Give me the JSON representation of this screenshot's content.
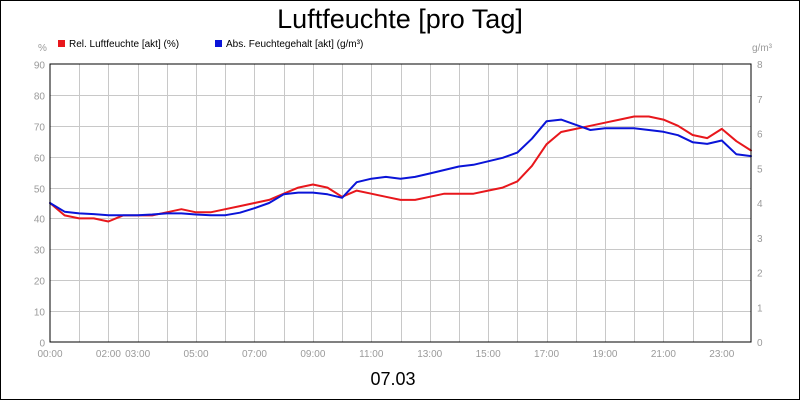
{
  "window": {
    "title": "Luftfeuchte [pro Tag]",
    "date_label": "07.03"
  },
  "legend": [
    {
      "label": "Rel. Luftfeuchte [akt] (%)",
      "color": "#e8171c"
    },
    {
      "label": "Abs. Feuchtegehalt [akt] (g/m³)",
      "color": "#0a14d8"
    }
  ],
  "colors": {
    "grid": "#c8c8c8",
    "axis_text": "#9a9a9a",
    "rel_humidity": "#e8171c",
    "abs_humidity": "#0a14d8"
  },
  "chart_data": {
    "type": "line",
    "title": "Luftfeuchte [pro Tag]",
    "xlabel": "07.03",
    "x_unit": "hours",
    "xlim": [
      0,
      24
    ],
    "x_ticks": [
      {
        "x": 0,
        "label": "00:00"
      },
      {
        "x": 2,
        "label": "02:00"
      },
      {
        "x": 3,
        "label": "03:00"
      },
      {
        "x": 5,
        "label": "05:00"
      },
      {
        "x": 7,
        "label": "07:00"
      },
      {
        "x": 9,
        "label": "09:00"
      },
      {
        "x": 11,
        "label": "11:00"
      },
      {
        "x": 13,
        "label": "13:00"
      },
      {
        "x": 15,
        "label": "15:00"
      },
      {
        "x": 17,
        "label": "17:00"
      },
      {
        "x": 19,
        "label": "19:00"
      },
      {
        "x": 21,
        "label": "21:00"
      },
      {
        "x": 23,
        "label": "23:00"
      }
    ],
    "grid": true,
    "legend_position": "top-left",
    "y_left": {
      "unit": "%",
      "range": [
        0,
        90
      ],
      "ticks": [
        0,
        10,
        20,
        30,
        40,
        50,
        60,
        70,
        80,
        90
      ]
    },
    "y_right": {
      "unit": "g/m³",
      "range": [
        0,
        8
      ],
      "ticks": [
        0,
        1,
        2,
        3,
        4,
        5,
        6,
        7,
        8
      ]
    },
    "series": [
      {
        "name": "Rel. Luftfeuchte [akt] (%)",
        "axis": "left",
        "color": "#e8171c",
        "x": [
          0,
          0.5,
          1,
          1.5,
          2,
          2.5,
          3,
          3.5,
          4,
          4.5,
          5,
          5.5,
          6,
          6.5,
          7,
          7.5,
          8,
          8.5,
          9,
          9.5,
          10,
          10.5,
          11,
          11.5,
          12,
          12.5,
          13,
          13.5,
          14,
          14.5,
          15,
          15.5,
          16,
          16.5,
          17,
          17.5,
          18,
          18.5,
          19,
          19.5,
          20,
          20.5,
          21,
          21.5,
          22,
          22.5,
          23,
          23.5,
          24
        ],
        "values": [
          45,
          41,
          40,
          40,
          39,
          41,
          41,
          41,
          42,
          43,
          42,
          42,
          43,
          44,
          45,
          46,
          48,
          50,
          51,
          50,
          47,
          49,
          48,
          47,
          46,
          46,
          47,
          48,
          48,
          48,
          49,
          50,
          52,
          57,
          64,
          68,
          69,
          70,
          71,
          72,
          73,
          73,
          72,
          70,
          67,
          66,
          69,
          65,
          62
        ]
      },
      {
        "name": "Abs. Feuchtegehalt [akt] (g/m³)",
        "axis": "right",
        "color": "#0a14d8",
        "x": [
          0,
          0.5,
          1,
          1.5,
          2,
          2.5,
          3,
          3.5,
          4,
          4.5,
          5,
          5.5,
          6,
          6.5,
          7,
          7.5,
          8,
          8.5,
          9,
          9.5,
          10,
          10.5,
          11,
          11.5,
          12,
          12.5,
          13,
          13.5,
          14,
          14.5,
          15,
          15.5,
          16,
          16.5,
          17,
          17.5,
          18,
          18.5,
          19,
          19.5,
          20,
          20.5,
          21,
          21.5,
          22,
          22.5,
          23,
          23.5,
          24
        ],
        "values": [
          4.0,
          3.75,
          3.7,
          3.68,
          3.65,
          3.65,
          3.65,
          3.67,
          3.7,
          3.7,
          3.67,
          3.65,
          3.65,
          3.72,
          3.85,
          4.0,
          4.25,
          4.3,
          4.3,
          4.25,
          4.15,
          4.6,
          4.7,
          4.75,
          4.7,
          4.75,
          4.85,
          4.95,
          5.05,
          5.1,
          5.2,
          5.3,
          5.45,
          5.85,
          6.35,
          6.4,
          6.25,
          6.1,
          6.15,
          6.15,
          6.15,
          6.1,
          6.05,
          5.95,
          5.75,
          5.7,
          5.8,
          5.4,
          5.35
        ]
      }
    ]
  }
}
